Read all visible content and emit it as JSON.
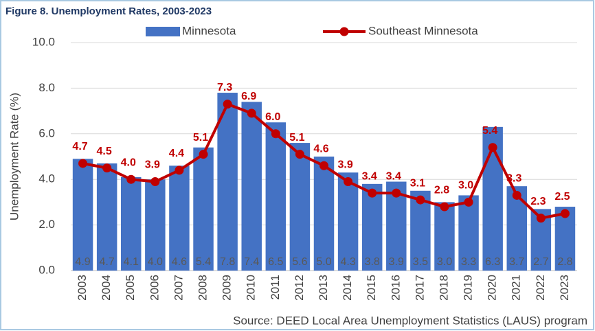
{
  "chart_data": {
    "type": "bar-line",
    "title": "Figure 8. Unemployment Rates, 2003-2023",
    "y_label": "Unemployment Rate (%)",
    "source": "Source: DEED Local Area Unemployment Statistics (LAUS) program",
    "categories": [
      "2003",
      "2004",
      "2005",
      "2006",
      "2007",
      "2008",
      "2009",
      "2010",
      "2011",
      "2012",
      "2013",
      "2014",
      "2015",
      "2016",
      "2017",
      "2018",
      "2019",
      "2020",
      "2021",
      "2022",
      "2023"
    ],
    "series": [
      {
        "name": "Minnesota",
        "type": "bar",
        "color": "#4472c4",
        "values": [
          4.9,
          4.7,
          4.1,
          4.0,
          4.6,
          5.4,
          7.8,
          7.4,
          6.5,
          5.6,
          5.0,
          4.3,
          3.8,
          3.9,
          3.5,
          3.0,
          3.3,
          6.3,
          3.7,
          2.7,
          2.8
        ],
        "value_labels": [
          "4.9",
          "4.7",
          "4.1",
          "4.0",
          "4.6",
          "5.4",
          "7.8",
          "7.4",
          "6.5",
          "5.6",
          "5.0",
          "4.3",
          "3.8",
          "3.9",
          "3.5",
          "3.0",
          "3.3",
          "6.3",
          "3.7",
          "2.7",
          "2.8"
        ]
      },
      {
        "name": "Southeast Minnesota",
        "type": "line",
        "color": "#c00000",
        "values": [
          4.7,
          4.5,
          4.0,
          3.9,
          4.4,
          5.1,
          7.3,
          6.9,
          6.0,
          5.1,
          4.6,
          3.9,
          3.4,
          3.4,
          3.1,
          2.8,
          3.0,
          5.4,
          3.3,
          2.3,
          2.5
        ],
        "value_labels": [
          "4.7",
          "4.5",
          "4.0",
          "3.9",
          "4.4",
          "5.1",
          "7.3",
          "6.9",
          "6.0",
          "5.1",
          "4.6",
          "3.9",
          "3.4",
          "3.4",
          "3.1",
          "2.8",
          "3.0",
          "5.4",
          "3.3",
          "2.3",
          "2.5"
        ]
      }
    ],
    "ylim": [
      0,
      10
    ],
    "yticks": [
      {
        "value": 0,
        "label": "0.0"
      },
      {
        "value": 2,
        "label": "2.0"
      },
      {
        "value": 4,
        "label": "4.0"
      },
      {
        "value": 6,
        "label": "6.0"
      },
      {
        "value": 8,
        "label": "8.0"
      },
      {
        "value": 10,
        "label": "10.0"
      }
    ],
    "grid": true
  }
}
